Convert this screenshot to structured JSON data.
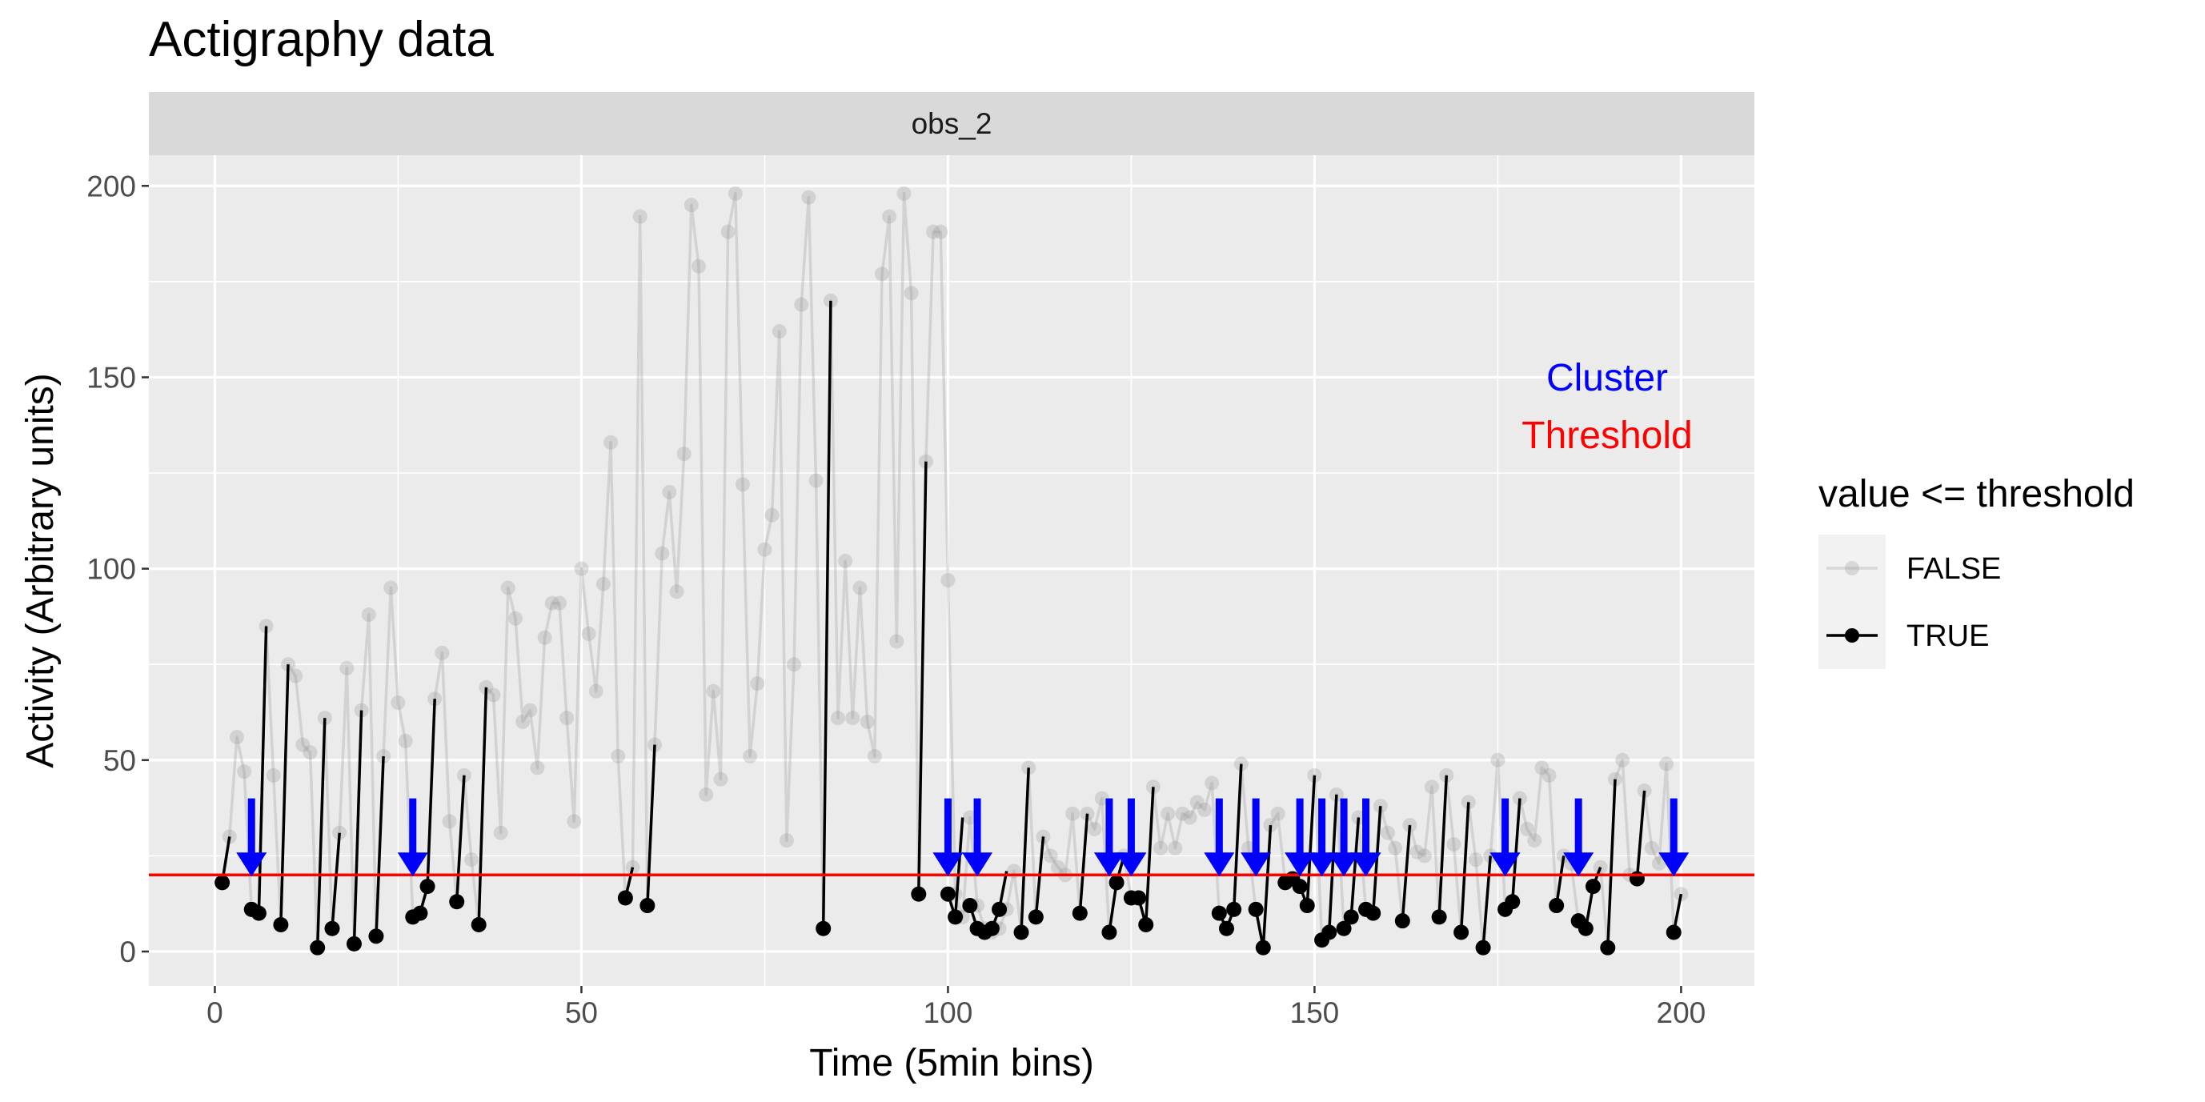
{
  "chart_data": {
    "type": "line",
    "title": "Actigraphy data",
    "facet": "obs_2",
    "xlabel": "Time (5min bins)",
    "ylabel": "Activity (Arbitrary units)",
    "xlim": [
      -9,
      210
    ],
    "ylim": [
      -9,
      208
    ],
    "xticks": [
      0,
      50,
      100,
      150,
      200
    ],
    "yticks": [
      0,
      50,
      100,
      150,
      200
    ],
    "threshold": 20,
    "threshold_color": "#ff0000",
    "cluster_color": "#0000ff",
    "legend_title": "value <= threshold",
    "series": [
      {
        "name": "FALSE",
        "color": "#999999",
        "x": [
          1,
          2,
          3,
          4,
          5,
          6,
          7,
          8,
          9,
          10,
          11,
          12,
          13,
          14,
          15,
          16,
          17,
          18,
          19,
          20,
          21,
          22,
          23,
          24,
          25,
          26,
          27,
          28,
          29,
          30,
          31,
          32,
          33,
          34,
          35,
          36,
          37,
          38,
          39,
          40,
          41,
          42,
          43,
          44,
          45,
          46,
          47,
          48,
          49,
          50,
          51,
          52,
          53,
          54,
          55,
          56,
          57,
          58,
          59,
          60,
          61,
          62,
          63,
          64,
          65,
          66,
          67,
          68,
          69,
          70,
          71,
          72,
          73,
          74,
          75,
          76,
          77,
          78,
          79,
          80,
          81,
          82,
          83,
          84,
          85,
          86,
          87,
          88,
          89,
          90,
          91,
          92,
          93,
          94,
          95,
          96,
          97,
          98,
          99,
          100,
          101,
          102,
          103,
          104,
          105,
          106,
          107,
          108,
          109,
          110,
          111,
          112,
          113,
          114,
          115,
          116,
          117,
          118,
          119,
          120,
          121,
          122,
          123,
          124,
          125,
          126,
          127,
          128,
          129,
          130,
          131,
          132,
          133,
          134,
          135,
          136,
          137,
          138,
          139,
          140,
          141,
          142,
          143,
          144,
          145,
          146,
          147,
          148,
          149,
          150,
          151,
          152,
          153,
          154,
          155,
          156,
          157,
          158,
          159,
          160,
          161,
          162,
          163,
          164,
          165,
          166,
          167,
          168,
          169,
          170,
          171,
          172,
          173,
          174,
          175,
          176,
          177,
          178,
          179,
          180,
          181,
          182,
          183,
          184,
          185,
          186,
          187,
          188,
          189,
          190,
          191,
          192,
          193,
          194,
          195,
          196,
          197,
          198,
          199,
          200
        ],
        "y": [
          18,
          30,
          56,
          47,
          11,
          10,
          85,
          46,
          7,
          75,
          72,
          54,
          52,
          1,
          61,
          6,
          31,
          74,
          2,
          63,
          88,
          4,
          51,
          95,
          65,
          55,
          9,
          10,
          17,
          66,
          78,
          34,
          13,
          46,
          24,
          7,
          69,
          67,
          31,
          95,
          87,
          60,
          63,
          48,
          82,
          91,
          91,
          61,
          34,
          100,
          83,
          68,
          96,
          133,
          51,
          14,
          22,
          192,
          12,
          54,
          104,
          120,
          94,
          130,
          195,
          179,
          41,
          68,
          45,
          188,
          198,
          122,
          51,
          70,
          105,
          114,
          162,
          29,
          75,
          169,
          197,
          123,
          6,
          170,
          61,
          102,
          61,
          95,
          60,
          51,
          177,
          192,
          81,
          198,
          172,
          15,
          128,
          188,
          188,
          97,
          15,
          9,
          35,
          12,
          6,
          5,
          6,
          11,
          21,
          5,
          48,
          9,
          30,
          25,
          22,
          20,
          36,
          10,
          36,
          32,
          40,
          5,
          18,
          25,
          14,
          14,
          7,
          43,
          27,
          36,
          27,
          36,
          35,
          39,
          37,
          44,
          10,
          6,
          11,
          49,
          27,
          11,
          1,
          33,
          36,
          18,
          19,
          17,
          12,
          46,
          3,
          5,
          41,
          6,
          9,
          35,
          11,
          10,
          38,
          31,
          27,
          8,
          33,
          26,
          25,
          43,
          9,
          46,
          28,
          5,
          39,
          24,
          1,
          25,
          50,
          11,
          13,
          40,
          32,
          29,
          48,
          46,
          12,
          25,
          23,
          8,
          6,
          17,
          22,
          1,
          45,
          50,
          20,
          19,
          42,
          27,
          23,
          49,
          5,
          15
        ]
      },
      {
        "name": "TRUE",
        "color": "#000000",
        "segments": [
          [
            [
              1,
              18
            ],
            [
              2,
              30
            ]
          ],
          [
            [
              5,
              11
            ],
            [
              6,
              10
            ],
            [
              7,
              85
            ]
          ],
          [
            [
              9,
              7
            ],
            [
              10,
              75
            ]
          ],
          [
            [
              14,
              1
            ],
            [
              15,
              61
            ]
          ],
          [
            [
              16,
              6
            ],
            [
              17,
              31
            ]
          ],
          [
            [
              19,
              2
            ],
            [
              20,
              63
            ]
          ],
          [
            [
              22,
              4
            ],
            [
              23,
              51
            ]
          ],
          [
            [
              27,
              9
            ],
            [
              28,
              10
            ],
            [
              29,
              17
            ],
            [
              30,
              66
            ]
          ],
          [
            [
              33,
              13
            ],
            [
              34,
              46
            ]
          ],
          [
            [
              36,
              7
            ],
            [
              37,
              69
            ]
          ],
          [
            [
              56,
              14
            ],
            [
              57,
              22
            ]
          ],
          [
            [
              59,
              12
            ],
            [
              60,
              54
            ]
          ],
          [
            [
              83,
              6
            ],
            [
              84,
              170
            ]
          ],
          [
            [
              96,
              15
            ],
            [
              97,
              128
            ]
          ],
          [
            [
              100,
              15
            ],
            [
              101,
              9
            ],
            [
              102,
              35
            ]
          ],
          [
            [
              103,
              12
            ],
            [
              104,
              6
            ],
            [
              105,
              5
            ],
            [
              106,
              6
            ],
            [
              107,
              11
            ],
            [
              108,
              21
            ]
          ],
          [
            [
              110,
              5
            ],
            [
              111,
              48
            ]
          ],
          [
            [
              112,
              9
            ],
            [
              113,
              30
            ]
          ],
          [
            [
              118,
              10
            ],
            [
              119,
              36
            ]
          ],
          [
            [
              122,
              5
            ],
            [
              123,
              18
            ],
            [
              124,
              25
            ]
          ],
          [
            [
              125,
              14
            ],
            [
              126,
              14
            ],
            [
              127,
              7
            ],
            [
              128,
              43
            ]
          ],
          [
            [
              137,
              10
            ],
            [
              138,
              6
            ],
            [
              139,
              11
            ],
            [
              140,
              49
            ]
          ],
          [
            [
              142,
              11
            ],
            [
              143,
              1
            ],
            [
              144,
              33
            ]
          ],
          [
            [
              146,
              18
            ],
            [
              147,
              19
            ],
            [
              148,
              17
            ],
            [
              149,
              12
            ],
            [
              150,
              46
            ]
          ],
          [
            [
              151,
              3
            ],
            [
              152,
              5
            ],
            [
              153,
              41
            ]
          ],
          [
            [
              154,
              6
            ],
            [
              155,
              9
            ],
            [
              156,
              35
            ]
          ],
          [
            [
              157,
              11
            ],
            [
              158,
              10
            ],
            [
              159,
              38
            ]
          ],
          [
            [
              162,
              8
            ],
            [
              163,
              33
            ]
          ],
          [
            [
              167,
              9
            ],
            [
              168,
              46
            ]
          ],
          [
            [
              170,
              5
            ],
            [
              171,
              39
            ]
          ],
          [
            [
              173,
              1
            ],
            [
              174,
              25
            ]
          ],
          [
            [
              176,
              11
            ],
            [
              177,
              13
            ],
            [
              178,
              40
            ]
          ],
          [
            [
              183,
              12
            ],
            [
              184,
              25
            ]
          ],
          [
            [
              186,
              8
            ],
            [
              187,
              6
            ],
            [
              188,
              17
            ],
            [
              189,
              22
            ]
          ],
          [
            [
              190,
              1
            ],
            [
              191,
              45
            ]
          ],
          [
            [
              194,
              19
            ],
            [
              195,
              42
            ]
          ],
          [
            [
              199,
              5
            ],
            [
              200,
              15
            ]
          ]
        ]
      }
    ],
    "cluster_arrows_x": [
      5,
      27,
      100,
      104,
      122,
      125,
      137,
      142,
      148,
      151,
      154,
      157,
      176,
      186,
      199
    ],
    "annotations": [
      {
        "text": "Cluster",
        "color": "#0000ff"
      },
      {
        "text": "Threshold",
        "color": "#ff0000"
      }
    ]
  }
}
